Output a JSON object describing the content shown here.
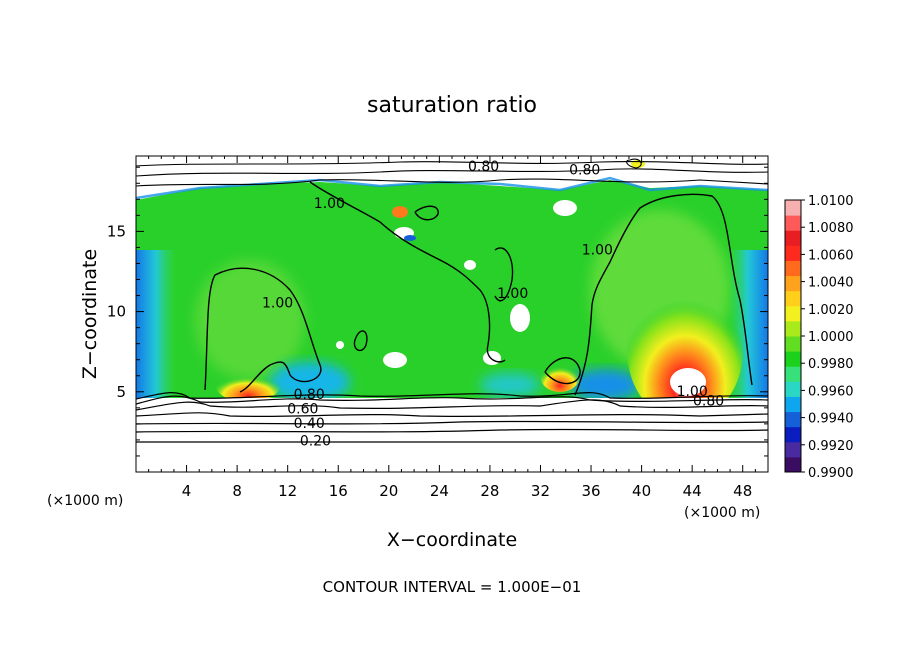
{
  "chart_data": {
    "type": "heatmap",
    "title": "saturation ratio",
    "xlabel": "X−coordinate",
    "ylabel": "Z−coordinate",
    "x_unit_left": "(×1000 m)",
    "x_unit_right": "(×1000 m)",
    "xlim": [
      0,
      50
    ],
    "ylim": [
      0,
      19.7
    ],
    "x_ticks": [
      4,
      8,
      12,
      16,
      20,
      24,
      28,
      32,
      36,
      40,
      44,
      48
    ],
    "y_ticks": [
      5,
      10,
      15
    ],
    "colorbar": {
      "min": 0.99,
      "max": 1.01,
      "ticks": [
        "1.0100",
        "1.0080",
        "1.0060",
        "1.0040",
        "1.0020",
        "1.0000",
        "0.9980",
        "0.9960",
        "0.9940",
        "0.9920",
        "0.9900"
      ],
      "colors": [
        "#3a0d63",
        "#4a2aa0",
        "#0a1ebf",
        "#1560d8",
        "#0fa6f0",
        "#2ad6c4",
        "#38e07a",
        "#1bd11b",
        "#62de22",
        "#a8ea1a",
        "#f2f01e",
        "#ffcf1c",
        "#ffa31c",
        "#ff6a1c",
        "#ff2a1e",
        "#e81e22",
        "#ff5a5a",
        "#f7b0b0"
      ]
    },
    "contour_labels": [
      {
        "text": "0.20",
        "x": 14.2,
        "z": 1.9
      },
      {
        "text": "0.40",
        "x": 13.7,
        "z": 3.0
      },
      {
        "text": "0.60",
        "x": 13.2,
        "z": 3.9
      },
      {
        "text": "0.80",
        "x": 13.7,
        "z": 4.8
      },
      {
        "text": "0.80",
        "x": 27.5,
        "z": 19.0
      },
      {
        "text": "0.80",
        "x": 35.5,
        "z": 18.8
      },
      {
        "text": "1.00",
        "x": 15.3,
        "z": 16.7
      },
      {
        "text": "1.00",
        "x": 11.2,
        "z": 10.5
      },
      {
        "text": "1.00",
        "x": 29.8,
        "z": 11.1
      },
      {
        "text": "1.00",
        "x": 36.5,
        "z": 13.8
      },
      {
        "text": "1.00",
        "x": 44.0,
        "z": 5.0
      },
      {
        "text": "0.80",
        "x": 45.3,
        "z": 4.4
      }
    ],
    "footer": "CONTOUR INTERVAL = 1.000E−01"
  }
}
